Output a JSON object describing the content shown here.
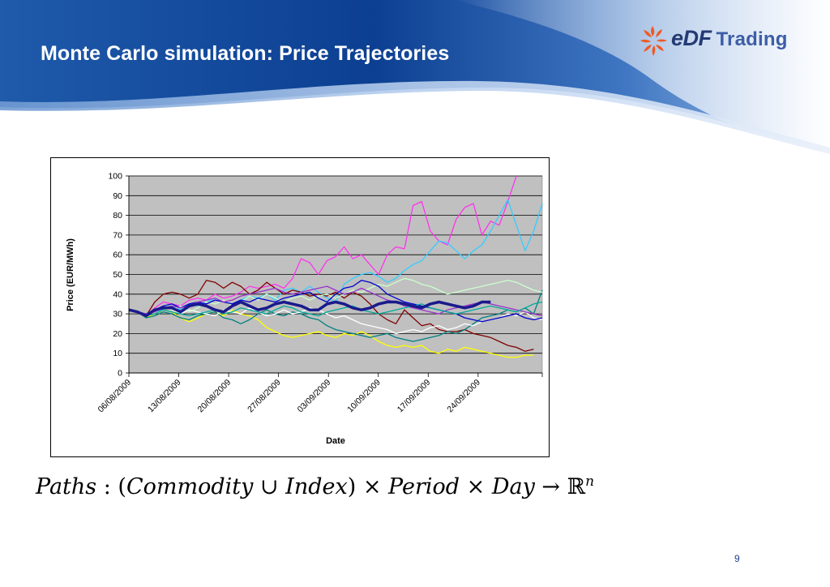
{
  "slide": {
    "title": "Monte Carlo simulation: Price Trajectories",
    "page_number": "9",
    "logo": {
      "brand": "eDF",
      "suffix": "Trading"
    },
    "formula": {
      "paths": "Paths",
      "colon": " : (",
      "commodity": "Commodity",
      "union": " ∪ ",
      "index": "Index",
      "close_times": ") × ",
      "period": "Period",
      "times": " × ",
      "day": "Day",
      "arrow": " → ",
      "reals": "ℝ",
      "exponent": "n"
    }
  },
  "colors": {
    "banner_dark": "#0d3f93",
    "banner_light": "#c5d8f0",
    "title": "#ffffff",
    "logo_orange": "#ee5a24",
    "logo_blue": "#243a74",
    "plot_bg": "#c0c0c0"
  },
  "chart_data": {
    "type": "line",
    "title": "",
    "xlabel": "Date",
    "ylabel": "Price (EUR/MWh)",
    "ylim": [
      0,
      100
    ],
    "yticks": [
      0,
      10,
      20,
      30,
      40,
      50,
      60,
      70,
      80,
      90,
      100
    ],
    "x_tick_labels": [
      "06/08/2009",
      "13/08/2009",
      "20/08/2009",
      "27/08/2009",
      "03/09/2009",
      "10/09/2009",
      "17/09/2009",
      "24/09/2009"
    ],
    "x_start": "06/08/2009",
    "x_end": "03/10/2009",
    "grid": "horizontal",
    "legend": "none",
    "series": [
      {
        "color": "#1a1a8c",
        "width": 3.5,
        "values": [
          32,
          31,
          29,
          32,
          33,
          33,
          31,
          34,
          35,
          34,
          32,
          31,
          34,
          36,
          34,
          32,
          33,
          35,
          36,
          35,
          34,
          32,
          32,
          35,
          36,
          35,
          33,
          32,
          33,
          35,
          36,
          36,
          35,
          34,
          33,
          35,
          36,
          35,
          34,
          33,
          34,
          36,
          36
        ]
      },
      {
        "color": "#ff33ee",
        "width": 1.3,
        "values": [
          32,
          31,
          29,
          33,
          36,
          35,
          34,
          37,
          38,
          37,
          40,
          38,
          39,
          41,
          44,
          43,
          44,
          45,
          43,
          48,
          58,
          56,
          50,
          57,
          59,
          64,
          58,
          60,
          55,
          50,
          60,
          64,
          63,
          85,
          87,
          72,
          67,
          65,
          78,
          84,
          86,
          70,
          77,
          75,
          87,
          100
        ]
      },
      {
        "color": "#33ccff",
        "width": 1.3,
        "values": [
          32,
          31,
          28,
          30,
          33,
          34,
          32,
          35,
          34,
          36,
          38,
          36,
          35,
          37,
          39,
          38,
          40,
          37,
          42,
          43,
          41,
          44,
          41,
          38,
          36,
          45,
          48,
          50,
          51,
          49,
          46,
          48,
          52,
          55,
          57,
          62,
          67,
          66,
          62,
          58,
          62,
          65,
          72,
          80,
          88,
          75,
          62,
          72,
          86
        ]
      },
      {
        "color": "#800000",
        "width": 1.3,
        "values": [
          32,
          31,
          29,
          36,
          40,
          41,
          40,
          38,
          40,
          47,
          46,
          43,
          46,
          44,
          40,
          42,
          46,
          43,
          40,
          42,
          41,
          39,
          40,
          39,
          41,
          38,
          41,
          39,
          35,
          30,
          27,
          25,
          32,
          28,
          24,
          25,
          22,
          21,
          21,
          22,
          20,
          19,
          18,
          16,
          14,
          13,
          11,
          12
        ]
      },
      {
        "color": "#ffff00",
        "width": 1.3,
        "values": [
          32,
          31,
          28,
          30,
          32,
          31,
          28,
          26,
          28,
          30,
          31,
          29,
          32,
          30,
          29,
          27,
          23,
          21,
          19,
          18,
          19,
          20,
          21,
          19,
          18,
          20,
          19,
          21,
          19,
          16,
          14,
          13,
          14,
          13,
          14,
          11,
          10,
          12,
          11,
          13,
          12,
          11,
          10,
          9,
          8,
          8,
          9,
          9
        ]
      },
      {
        "color": "#008080",
        "width": 1.3,
        "values": [
          32,
          31,
          28,
          29,
          31,
          30,
          28,
          27,
          29,
          30,
          31,
          28,
          27,
          25,
          27,
          30,
          32,
          30,
          29,
          31,
          30,
          28,
          27,
          24,
          22,
          21,
          20,
          19,
          18,
          19,
          20,
          18,
          17,
          16,
          17,
          18,
          19,
          21,
          20,
          22,
          25,
          28,
          29,
          30,
          32,
          31,
          33,
          30,
          42
        ]
      },
      {
        "color": "#ffffff",
        "width": 1.3,
        "values": [
          32,
          31,
          29,
          31,
          33,
          32,
          30,
          32,
          31,
          30,
          29,
          32,
          31,
          30,
          33,
          31,
          29,
          30,
          32,
          30,
          31,
          33,
          32,
          30,
          28,
          29,
          27,
          25,
          24,
          23,
          22,
          20,
          21,
          22,
          21,
          23,
          24,
          22,
          23,
          25,
          24,
          26,
          27,
          28,
          30,
          29,
          31,
          28,
          27
        ]
      },
      {
        "color": "#ccffcc",
        "width": 1.3,
        "values": [
          32,
          31,
          29,
          31,
          33,
          32,
          34,
          31,
          33,
          36,
          35,
          37,
          34,
          36,
          39,
          37,
          40,
          38,
          36,
          38,
          39,
          37,
          39,
          40,
          38,
          40,
          42,
          41,
          43,
          45,
          44,
          46,
          48,
          47,
          45,
          44,
          42,
          40,
          41,
          42,
          43,
          44,
          45,
          46,
          47,
          46,
          44,
          42,
          41
        ]
      },
      {
        "color": "#0000cc",
        "width": 1.3,
        "values": [
          32,
          31,
          30,
          32,
          34,
          35,
          33,
          35,
          36,
          35,
          37,
          36,
          35,
          37,
          36,
          38,
          37,
          36,
          38,
          39,
          40,
          41,
          38,
          36,
          40,
          43,
          44,
          47,
          46,
          44,
          40,
          38,
          36,
          35,
          34,
          33,
          32,
          31,
          30,
          28,
          27,
          26,
          27,
          28,
          29,
          30,
          28,
          27,
          28
        ]
      },
      {
        "color": "#9933cc",
        "width": 1.3,
        "values": [
          32,
          31,
          30,
          31,
          33,
          34,
          33,
          34,
          36,
          37,
          38,
          36,
          37,
          39,
          40,
          41,
          42,
          43,
          41,
          40,
          41,
          42,
          43,
          44,
          42,
          40,
          41,
          43,
          41,
          39,
          37,
          36,
          34,
          33,
          32,
          31,
          30,
          32,
          33,
          34,
          35,
          36,
          35,
          34,
          33,
          32,
          31,
          30,
          29
        ]
      },
      {
        "color": "#00aa99",
        "width": 1.3,
        "values": [
          32,
          31,
          29,
          30,
          32,
          31,
          30,
          29,
          30,
          31,
          32,
          30,
          31,
          33,
          32,
          31,
          30,
          32,
          34,
          33,
          31,
          30,
          29,
          31,
          32,
          33,
          34,
          32,
          31,
          30,
          31,
          32,
          33,
          34,
          35,
          33,
          32,
          31,
          30,
          31,
          32,
          33,
          34,
          33,
          32,
          31,
          33,
          35,
          36
        ]
      }
    ]
  }
}
